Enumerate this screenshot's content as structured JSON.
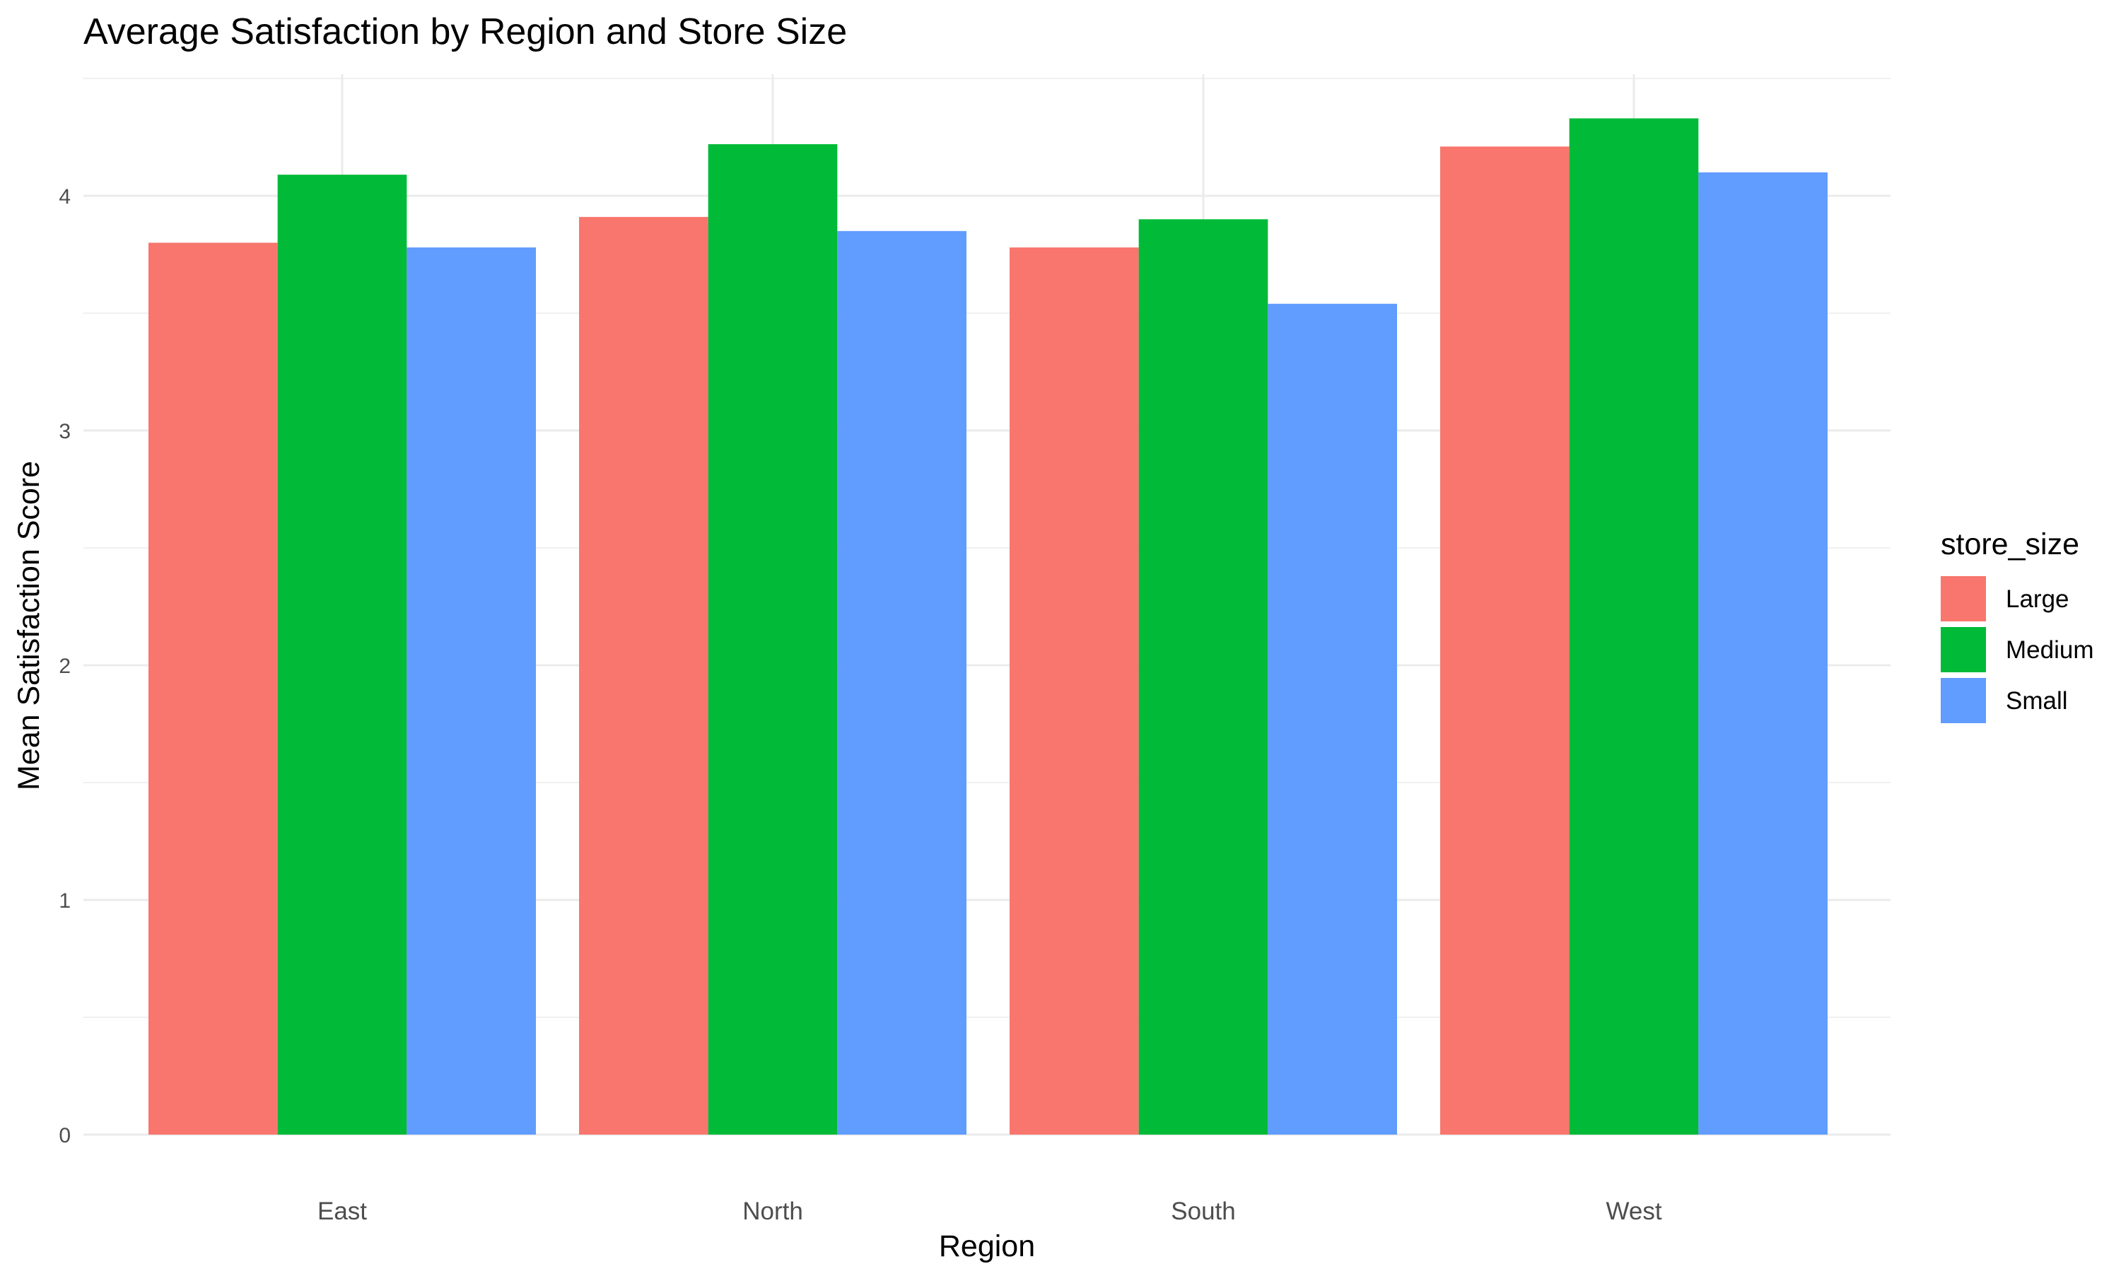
{
  "chart_data": {
    "type": "bar",
    "title": "Average Satisfaction by Region and Store Size",
    "xlabel": "Region",
    "ylabel": "Mean Satisfaction Score",
    "categories": [
      "East",
      "North",
      "South",
      "West"
    ],
    "series": [
      {
        "name": "Large",
        "color": "#F8766D",
        "values": [
          3.8,
          3.91,
          3.78,
          4.21
        ]
      },
      {
        "name": "Medium",
        "color": "#00BA38",
        "values": [
          4.09,
          4.22,
          3.9,
          4.33
        ]
      },
      {
        "name": "Small",
        "color": "#619CFF",
        "values": [
          3.78,
          3.85,
          3.54,
          4.1
        ]
      }
    ],
    "ylim": [
      0,
      4.5
    ],
    "yticks": [
      0,
      1,
      2,
      3,
      4
    ],
    "grid": true,
    "legend": {
      "title": "store_size",
      "position": "right"
    }
  }
}
